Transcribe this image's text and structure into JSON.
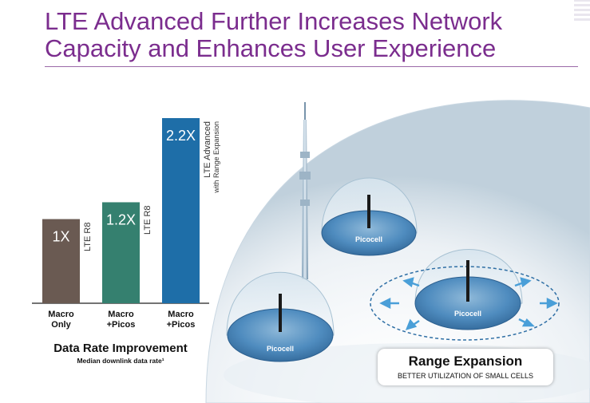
{
  "page": {
    "title_line1": "LTE Advanced Further Increases Network",
    "title_line2": "Capacity and Enhances User Experience"
  },
  "chart_data": {
    "type": "bar",
    "title": "Data Rate Improvement",
    "subtitle": "Median downlink data rate¹",
    "categories": [
      [
        "Macro",
        "Only"
      ],
      [
        "Macro",
        "+Picos"
      ],
      [
        "Macro",
        "+Picos"
      ]
    ],
    "values": [
      1.0,
      1.2,
      2.2
    ],
    "data_labels": [
      "1X",
      "1.2X",
      "2.2X"
    ],
    "bar_colors": [
      "#6a5a52",
      "#35806f",
      "#1e6ea8"
    ],
    "bar_annotations": [
      [
        "LTE R8"
      ],
      [
        "LTE R8"
      ],
      [
        "LTE Advanced",
        "with Range Expansion"
      ]
    ],
    "ylim": [
      0,
      2.2
    ]
  },
  "diagram": {
    "picocell_label": "Picocell",
    "range_expansion_title": "Range Expansion",
    "range_expansion_subtitle": "BETTER UTILIZATION OF SMALL CELLS"
  },
  "colors": {
    "title": "#7b2d8e",
    "dome_edge": "#a7c1d2",
    "disc": "#3f79ac"
  }
}
